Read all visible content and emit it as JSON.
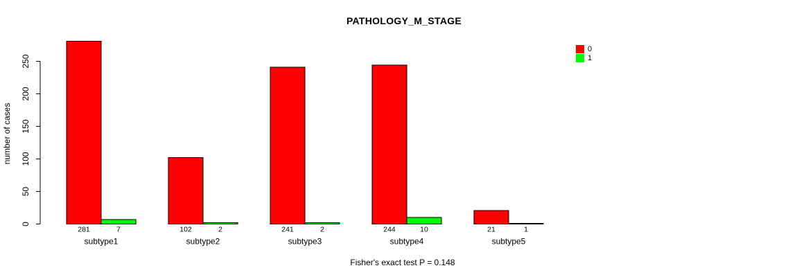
{
  "chart_data": {
    "type": "bar",
    "title": "PATHOLOGY_M_STAGE",
    "ylabel": "number of cases",
    "xlabel": "",
    "annotation": "Fisher's exact test P = 0.148",
    "categories": [
      "subtype1",
      "subtype2",
      "subtype3",
      "subtype4",
      "subtype5"
    ],
    "series": [
      {
        "name": "0",
        "color": "#FF0000",
        "values": [
          281,
          102,
          241,
          244,
          21
        ]
      },
      {
        "name": "1",
        "color": "#00FF00",
        "values": [
          7,
          2,
          2,
          10,
          1
        ]
      }
    ],
    "value_labels": [
      [
        "281",
        "7"
      ],
      [
        "102",
        "2"
      ],
      [
        "241",
        "2"
      ],
      [
        "244",
        "10"
      ],
      [
        "21",
        "1"
      ]
    ],
    "ylim": [
      0,
      250
    ],
    "yticks": [
      0,
      50,
      100,
      150,
      200,
      250
    ],
    "legend_position": "top-right",
    "grid": false,
    "axis_color": "#000000",
    "text_color": "#000000",
    "background_color": "#FFFFFF"
  }
}
